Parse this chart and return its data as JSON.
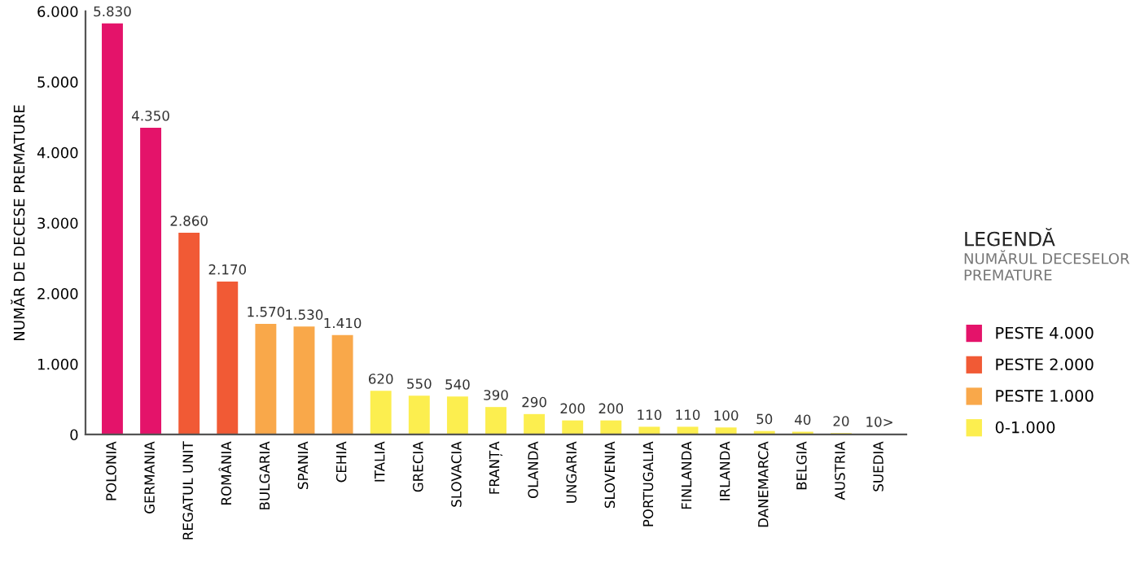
{
  "chart_data": {
    "type": "bar",
    "ylabel": "NUMĂR DE DECESE PREMATURE",
    "legend_title": "LEGENDĂ",
    "annotations": [
      "NUMĂRUL DECESELOR PREMATURE"
    ],
    "categories": [
      "POLONIA",
      "GERMANIA",
      "REGATUL UNIT",
      "ROMÂNIA",
      "BULGARIA",
      "SPANIA",
      "CEHIA",
      "ITALIA",
      "GRECIA",
      "SLOVACIA",
      "FRANȚA",
      "OLANDA",
      "UNGARIA",
      "SLOVENIA",
      "PORTUGALIA",
      "FINLANDA",
      "IRLANDA",
      "DANEMARCA",
      "BELGIA",
      "AUSTRIA",
      "SUEDIA"
    ],
    "series": [
      {
        "name": "PESTE 4.000",
        "color": "#e4136a",
        "values": [
          5830,
          4350,
          null,
          null,
          null,
          null,
          null,
          null,
          null,
          null,
          null,
          null,
          null,
          null,
          null,
          null,
          null,
          null,
          null,
          null,
          null
        ]
      },
      {
        "name": "PESTE 2.000",
        "color": "#f15a35",
        "values": [
          null,
          null,
          2860,
          2170,
          null,
          null,
          null,
          null,
          null,
          null,
          null,
          null,
          null,
          null,
          null,
          null,
          null,
          null,
          null,
          null,
          null
        ]
      },
      {
        "name": "PESTE 1.000",
        "color": "#f9a84a",
        "values": [
          null,
          null,
          null,
          null,
          1570,
          1530,
          1410,
          null,
          null,
          null,
          null,
          null,
          null,
          null,
          null,
          null,
          null,
          null,
          null,
          null,
          null
        ]
      },
      {
        "name": "0-1.000",
        "color": "#fcee4f",
        "values": [
          null,
          null,
          null,
          null,
          null,
          null,
          null,
          620,
          550,
          540,
          390,
          290,
          200,
          200,
          110,
          110,
          100,
          50,
          40,
          20,
          10
        ]
      }
    ],
    "value_labels": [
      "5.830",
      "4.350",
      "2.860",
      "2.170",
      "1.570",
      "1.530",
      "1.410",
      "620",
      "550",
      "540",
      "390",
      "290",
      "200",
      "200",
      "110",
      "110",
      "100",
      "50",
      "40",
      "20",
      "10>"
    ],
    "ylim": [
      0,
      6000
    ],
    "yticks": [
      {
        "value": 0,
        "label": "0"
      },
      {
        "value": 1000,
        "label": "1.000"
      },
      {
        "value": 2000,
        "label": "2.000"
      },
      {
        "value": 3000,
        "label": "3.000"
      },
      {
        "value": 4000,
        "label": "4.000"
      },
      {
        "value": 5000,
        "label": "5.000"
      },
      {
        "value": 6000,
        "label": "6.000"
      }
    ],
    "grid": false,
    "legend": "right"
  }
}
